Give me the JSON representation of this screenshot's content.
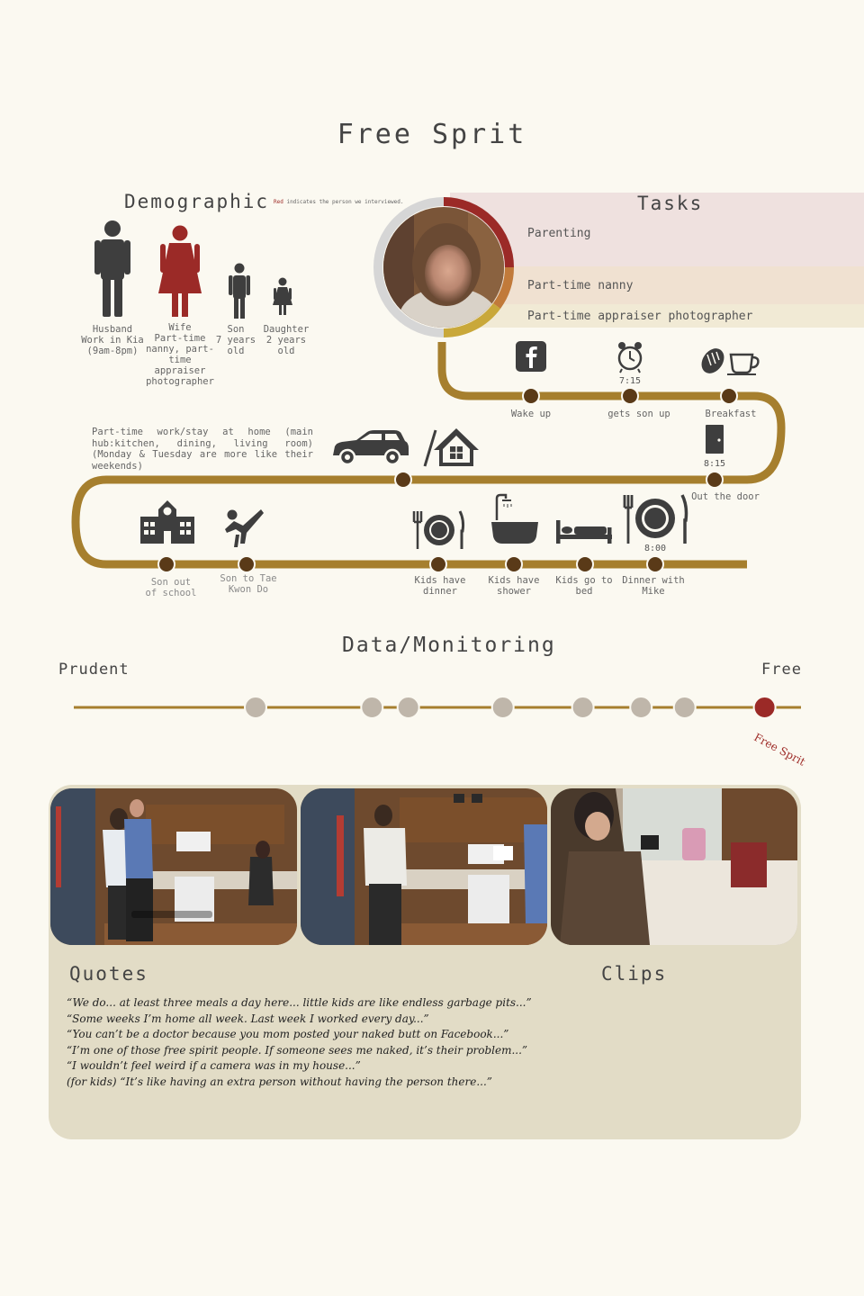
{
  "title": "Free Sprit",
  "demographic": {
    "title": "Demographic",
    "note_red": "Red",
    "note_rest": " indicates the person we interviewed.",
    "members": [
      {
        "label": "Husband\nWork in Kia\n(9am-8pm)",
        "highlight": false
      },
      {
        "label": "Wife\nPart-time\nnanny, part-\ntime\nappraiser\nphotographer",
        "highlight": true
      },
      {
        "label": "Son\n7 years\nold",
        "highlight": false
      },
      {
        "label": "Daughter\n2 years\nold",
        "highlight": false
      }
    ]
  },
  "tasks": {
    "title": "Tasks",
    "items": [
      {
        "label": "Parenting",
        "color": "#efe1df"
      },
      {
        "label": "Part-time nanny",
        "color": "#f0e1d1"
      },
      {
        "label": "Part-time appraiser photographer",
        "color": "#f1ead5"
      }
    ]
  },
  "timeline": {
    "events": [
      {
        "label": "Wake up",
        "time": ""
      },
      {
        "label": "gets son up",
        "time": "7:15"
      },
      {
        "label": "Breakfast",
        "time": ""
      },
      {
        "label": "Out the door",
        "time": "8:15"
      },
      {
        "label": "Dinner with\nMike",
        "time": "8:00"
      },
      {
        "label": "Kids go to\nbed",
        "time": ""
      },
      {
        "label": "Kids have\nshower",
        "time": ""
      },
      {
        "label": "Kids have\ndinner",
        "time": ""
      },
      {
        "label": "Son to Tae\nKwon Do",
        "time": ""
      },
      {
        "label": "Son out\nof school",
        "time": ""
      }
    ],
    "info": "Part-time work/stay at home (main hub:kitchen, dining, living room) (Monday & Tuesday are more like their weekends)",
    "path_color": "#a67f2e",
    "dot_color": "#5a3a18"
  },
  "data_monitoring": {
    "title": "Data/Monitoring",
    "left_label": "Prudent",
    "right_label": "Free",
    "tag": "Free Sprit",
    "points": [
      0.25,
      0.41,
      0.46,
      0.59,
      0.7,
      0.78,
      0.84,
      0.95
    ],
    "highlight_index": 7
  },
  "quotes": {
    "title": "Quotes",
    "items": [
      "“We do... at least three meals a day here... little kids are like endless garbage pits...”",
      "“Some weeks I’m home all week.  Last week I worked every day...”",
      "“You can’t be a doctor because you mom posted your naked butt on Facebook...”",
      "“I’m one of those free spirit people. If someone sees me naked, it’s their problem...”",
      "“I wouldn’t feel weird if a camera was in my house...”",
      "(for kids) “It’s like having an extra person without having the person there...”"
    ]
  },
  "clips": {
    "title": "Clips"
  }
}
